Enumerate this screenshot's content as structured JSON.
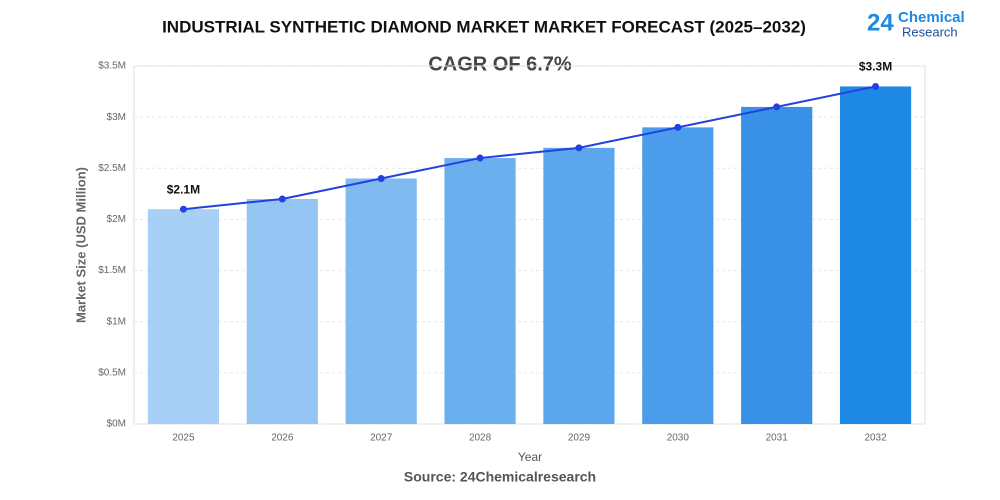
{
  "chart_data": {
    "type": "bar",
    "title": "INDUSTRIAL SYNTHETIC DIAMOND MARKET MARKET FORECAST (2025–2032)",
    "subtitle": "CAGR OF 6.7%",
    "brand": {
      "number": "24",
      "name": "Chemical",
      "tagline": "Research"
    },
    "xlabel": "Year",
    "ylabel": "Market Size (USD Million)",
    "source": "Source: 24Chemicalresearch",
    "categories": [
      "2025",
      "2026",
      "2027",
      "2028",
      "2029",
      "2030",
      "2031",
      "2032"
    ],
    "values": [
      2.1,
      2.2,
      2.4,
      2.6,
      2.7,
      2.9,
      3.1,
      3.3
    ],
    "value_labels": [
      "$2.1M",
      null,
      null,
      null,
      null,
      null,
      null,
      "$3.3M"
    ],
    "colors": [
      "#a8cff5",
      "#94c5f3",
      "#7fbaf0",
      "#6bb0ee",
      "#5ba6ec",
      "#4b9cea",
      "#3891e7",
      "#1e88e5"
    ],
    "line_color": "#2340e0",
    "ylim": [
      0,
      3.5
    ],
    "yticks": [
      {
        "value": 0,
        "label": "$0M"
      },
      {
        "value": 0.5,
        "label": "$0.5M"
      },
      {
        "value": 1,
        "label": "$1M"
      },
      {
        "value": 1.5,
        "label": "$1.5M"
      },
      {
        "value": 2,
        "label": "$2M"
      },
      {
        "value": 2.5,
        "label": "$2.5M"
      },
      {
        "value": 3,
        "label": "$3M"
      },
      {
        "value": 3.5,
        "label": "$3.5M"
      }
    ],
    "grid": true
  }
}
